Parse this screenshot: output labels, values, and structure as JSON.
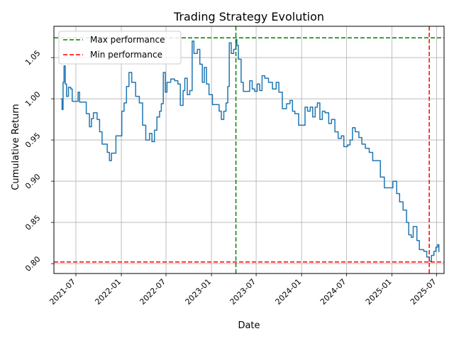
{
  "chart_data": {
    "type": "line",
    "title": "Trading Strategy Evolution",
    "xlabel": "Date",
    "ylabel": "Cumulative Return",
    "xlim": [
      "2021-04-03",
      "2025-07-31"
    ],
    "ylim": [
      0.788,
      1.088
    ],
    "x_ticks": [
      "2021-07",
      "2022-01",
      "2022-07",
      "2023-01",
      "2023-07",
      "2024-01",
      "2024-07",
      "2025-01",
      "2025-07"
    ],
    "y_ticks": [
      "0.80",
      "0.85",
      "0.90",
      "0.95",
      "1.00",
      "1.05"
    ],
    "grid": true,
    "legend_position": "top-left",
    "series": [
      {
        "color": "#1f77b4",
        "points": [
          [
            "2021-05-01",
            1.0
          ],
          [
            "2021-05-06",
            0.987
          ],
          [
            "2021-05-10",
            1.02
          ],
          [
            "2021-05-14",
            1.04
          ],
          [
            "2021-05-19",
            1.018
          ],
          [
            "2021-05-24",
            1.003
          ],
          [
            "2021-06-01",
            1.014
          ],
          [
            "2021-06-10",
            1.012
          ],
          [
            "2021-06-16",
            0.997
          ],
          [
            "2021-07-05",
            0.997
          ],
          [
            "2021-07-10",
            1.008
          ],
          [
            "2021-07-16",
            0.996
          ],
          [
            "2021-08-05",
            0.996
          ],
          [
            "2021-08-12",
            0.982
          ],
          [
            "2021-08-25",
            0.966
          ],
          [
            "2021-09-02",
            0.976
          ],
          [
            "2021-09-10",
            0.983
          ],
          [
            "2021-09-25",
            0.975
          ],
          [
            "2021-10-05",
            0.96
          ],
          [
            "2021-10-15",
            0.945
          ],
          [
            "2021-10-28",
            0.945
          ],
          [
            "2021-11-05",
            0.935
          ],
          [
            "2021-11-14",
            0.925
          ],
          [
            "2021-11-22",
            0.934
          ],
          [
            "2021-12-10",
            0.955
          ],
          [
            "2022-01-03",
            0.985
          ],
          [
            "2022-01-12",
            0.995
          ],
          [
            "2022-01-22",
            1.015
          ],
          [
            "2022-02-01",
            1.032
          ],
          [
            "2022-02-12",
            1.02
          ],
          [
            "2022-02-28",
            1.003
          ],
          [
            "2022-03-15",
            0.995
          ],
          [
            "2022-03-28",
            0.968
          ],
          [
            "2022-04-10",
            0.95
          ],
          [
            "2022-04-25",
            0.958
          ],
          [
            "2022-05-05",
            0.948
          ],
          [
            "2022-05-15",
            0.962
          ],
          [
            "2022-05-25",
            0.978
          ],
          [
            "2022-06-05",
            0.985
          ],
          [
            "2022-06-12",
            0.994
          ],
          [
            "2022-06-20",
            1.032
          ],
          [
            "2022-06-28",
            1.008
          ],
          [
            "2022-07-05",
            1.02
          ],
          [
            "2022-07-20",
            1.024
          ],
          [
            "2022-08-05",
            1.022
          ],
          [
            "2022-08-18",
            1.018
          ],
          [
            "2022-08-28",
            0.992
          ],
          [
            "2022-09-08",
            1.01
          ],
          [
            "2022-09-15",
            1.025
          ],
          [
            "2022-09-25",
            1.005
          ],
          [
            "2022-10-05",
            1.01
          ],
          [
            "2022-10-15",
            1.07
          ],
          [
            "2022-10-22",
            1.055
          ],
          [
            "2022-11-05",
            1.06
          ],
          [
            "2022-11-15",
            1.042
          ],
          [
            "2022-11-25",
            1.02
          ],
          [
            "2022-12-03",
            1.038
          ],
          [
            "2022-12-12",
            1.018
          ],
          [
            "2022-12-22",
            1.005
          ],
          [
            "2023-01-05",
            0.993
          ],
          [
            "2023-01-20",
            0.993
          ],
          [
            "2023-02-01",
            0.985
          ],
          [
            "2023-02-10",
            0.975
          ],
          [
            "2023-02-20",
            0.985
          ],
          [
            "2023-03-01",
            0.995
          ],
          [
            "2023-03-08",
            1.015
          ],
          [
            "2023-03-14",
            1.068
          ],
          [
            "2023-03-22",
            1.055
          ],
          [
            "2023-04-01",
            1.06
          ],
          [
            "2023-04-10",
            1.072
          ],
          [
            "2023-04-14",
            1.065
          ],
          [
            "2023-04-20",
            1.048
          ],
          [
            "2023-05-01",
            1.02
          ],
          [
            "2023-05-10",
            1.009
          ],
          [
            "2023-05-25",
            1.009
          ],
          [
            "2023-06-05",
            1.022
          ],
          [
            "2023-06-15",
            1.012
          ],
          [
            "2023-06-25",
            1.009
          ],
          [
            "2023-07-05",
            1.018
          ],
          [
            "2023-07-15",
            1.01
          ],
          [
            "2023-07-25",
            1.028
          ],
          [
            "2023-08-05",
            1.025
          ],
          [
            "2023-08-20",
            1.02
          ],
          [
            "2023-09-05",
            1.012
          ],
          [
            "2023-09-20",
            1.02
          ],
          [
            "2023-10-01",
            1.008
          ],
          [
            "2023-10-15",
            0.988
          ],
          [
            "2023-11-01",
            0.994
          ],
          [
            "2023-11-15",
            0.998
          ],
          [
            "2023-11-25",
            0.985
          ],
          [
            "2023-12-05",
            0.982
          ],
          [
            "2023-12-20",
            0.968
          ],
          [
            "2024-01-05",
            0.968
          ],
          [
            "2024-01-15",
            0.99
          ],
          [
            "2024-01-25",
            0.985
          ],
          [
            "2024-02-05",
            0.99
          ],
          [
            "2024-02-15",
            0.978
          ],
          [
            "2024-02-25",
            0.99
          ],
          [
            "2024-03-05",
            0.995
          ],
          [
            "2024-03-15",
            0.975
          ],
          [
            "2024-03-25",
            0.985
          ],
          [
            "2024-04-05",
            0.983
          ],
          [
            "2024-04-20",
            0.97
          ],
          [
            "2024-05-01",
            0.975
          ],
          [
            "2024-05-15",
            0.96
          ],
          [
            "2024-05-28",
            0.952
          ],
          [
            "2024-06-10",
            0.955
          ],
          [
            "2024-06-20",
            0.942
          ],
          [
            "2024-07-05",
            0.944
          ],
          [
            "2024-07-15",
            0.95
          ],
          [
            "2024-07-25",
            0.965
          ],
          [
            "2024-08-05",
            0.96
          ],
          [
            "2024-08-20",
            0.953
          ],
          [
            "2024-09-01",
            0.945
          ],
          [
            "2024-09-15",
            0.94
          ],
          [
            "2024-10-01",
            0.935
          ],
          [
            "2024-10-15",
            0.925
          ],
          [
            "2024-11-01",
            0.925
          ],
          [
            "2024-11-15",
            0.905
          ],
          [
            "2024-12-01",
            0.892
          ],
          [
            "2024-12-20",
            0.892
          ],
          [
            "2025-01-05",
            0.9
          ],
          [
            "2025-01-20",
            0.885
          ],
          [
            "2025-02-01",
            0.875
          ],
          [
            "2025-02-15",
            0.865
          ],
          [
            "2025-03-01",
            0.85
          ],
          [
            "2025-03-10",
            0.835
          ],
          [
            "2025-03-20",
            0.832
          ],
          [
            "2025-03-28",
            0.845
          ],
          [
            "2025-04-05",
            0.845
          ],
          [
            "2025-04-12",
            0.828
          ],
          [
            "2025-04-22",
            0.817
          ],
          [
            "2025-05-10",
            0.815
          ],
          [
            "2025-05-22",
            0.808
          ],
          [
            "2025-06-01",
            0.803
          ],
          [
            "2025-06-10",
            0.81
          ],
          [
            "2025-06-20",
            0.815
          ],
          [
            "2025-06-28",
            0.82
          ],
          [
            "2025-07-05",
            0.823
          ],
          [
            "2025-07-10",
            0.814
          ]
        ]
      }
    ],
    "reference_lines": [
      {
        "label": "Max performance",
        "color": "#008000",
        "style": "dashed",
        "date": "2023-04-10",
        "value": 1.074
      },
      {
        "label": "Min performance",
        "color": "#ff0000",
        "style": "dashed",
        "date": "2025-06-01",
        "value": 0.802
      }
    ]
  }
}
